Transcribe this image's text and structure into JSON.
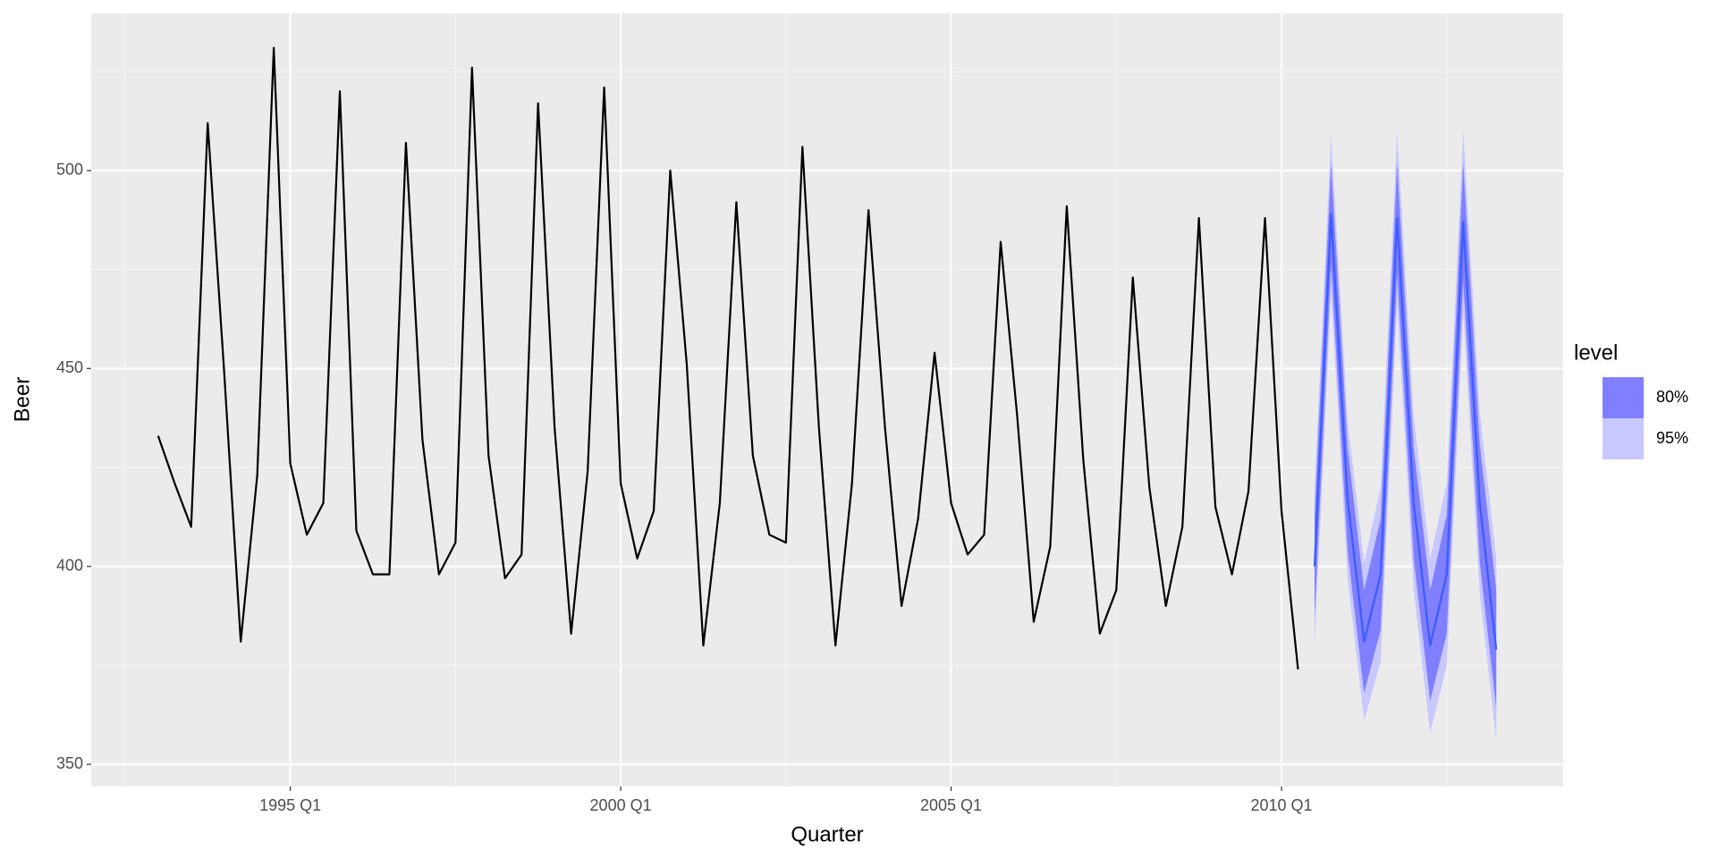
{
  "chart_data": {
    "type": "line",
    "x_label": "Quarter",
    "y_label": "Beer",
    "legend_title": "level",
    "legend_position": "right",
    "grid": true,
    "ylim": [
      344.4,
      539.7
    ],
    "yticks": [
      350,
      400,
      450,
      500
    ],
    "xticks": [
      "1995 Q1",
      "2000 Q1",
      "2005 Q1",
      "2010 Q1"
    ],
    "series": [
      {
        "color": "#000000",
        "x": [
          "1993 Q1",
          "1993 Q2",
          "1993 Q3",
          "1993 Q4",
          "1994 Q1",
          "1994 Q2",
          "1994 Q3",
          "1994 Q4",
          "1995 Q1",
          "1995 Q2",
          "1995 Q3",
          "1995 Q4",
          "1996 Q1",
          "1996 Q2",
          "1996 Q3",
          "1996 Q4",
          "1997 Q1",
          "1997 Q2",
          "1997 Q3",
          "1997 Q4",
          "1998 Q1",
          "1998 Q2",
          "1998 Q3",
          "1998 Q4",
          "1999 Q1",
          "1999 Q2",
          "1999 Q3",
          "1999 Q4",
          "2000 Q1",
          "2000 Q2",
          "2000 Q3",
          "2000 Q4",
          "2001 Q1",
          "2001 Q2",
          "2001 Q3",
          "2001 Q4",
          "2002 Q1",
          "2002 Q2",
          "2002 Q3",
          "2002 Q4",
          "2003 Q1",
          "2003 Q2",
          "2003 Q3",
          "2003 Q4",
          "2004 Q1",
          "2004 Q2",
          "2004 Q3",
          "2004 Q4",
          "2005 Q1",
          "2005 Q2",
          "2005 Q3",
          "2005 Q4",
          "2006 Q1",
          "2006 Q2",
          "2006 Q3",
          "2006 Q4",
          "2007 Q1",
          "2007 Q2",
          "2007 Q3",
          "2007 Q4",
          "2008 Q1",
          "2008 Q2",
          "2008 Q3",
          "2008 Q4",
          "2009 Q1",
          "2009 Q2",
          "2009 Q3",
          "2009 Q4",
          "2010 Q1",
          "2010 Q2"
        ],
        "values": [
          433,
          421,
          410,
          512,
          449,
          381,
          423,
          531,
          426,
          408,
          416,
          520,
          409,
          398,
          398,
          507,
          432,
          398,
          406,
          526,
          428,
          397,
          403,
          517,
          435,
          383,
          424,
          521,
          421,
          402,
          414,
          500,
          451,
          380,
          416,
          492,
          428,
          408,
          406,
          506,
          435,
          380,
          421,
          490,
          435,
          390,
          412,
          454,
          416,
          403,
          408,
          482,
          438,
          386,
          405,
          491,
          427,
          383,
          394,
          473,
          420,
          390,
          410,
          488,
          415,
          398,
          419,
          488,
          414,
          374
        ]
      },
      {
        "color": "#3a5cff",
        "x": [
          "2010 Q3",
          "2010 Q4",
          "2011 Q1",
          "2011 Q2",
          "2011 Q3",
          "2011 Q4",
          "2012 Q1",
          "2012 Q2",
          "2012 Q3",
          "2012 Q4",
          "2013 Q1",
          "2013 Q2"
        ],
        "values": [
          400,
          489,
          417,
          381,
          398,
          488,
          416,
          380,
          398,
          487,
          416,
          379
        ]
      }
    ],
    "intervals": [
      {
        "name": "95%",
        "color": "#c8c8ff",
        "lower": [
          380,
          469,
          397,
          361,
          376,
          466,
          394,
          358,
          375,
          464,
          393,
          356
        ],
        "upper": [
          420,
          509,
          437,
          401,
          420,
          510,
          438,
          402,
          421,
          510,
          439,
          402
        ]
      },
      {
        "name": "80%",
        "color": "#7f7fff",
        "lower": [
          387,
          476,
          404,
          368,
          384,
          474,
          402,
          366,
          383,
          472,
          401,
          364
        ],
        "upper": [
          413,
          502,
          430,
          394,
          412,
          502,
          430,
          394,
          413,
          502,
          431,
          394
        ]
      }
    ]
  }
}
